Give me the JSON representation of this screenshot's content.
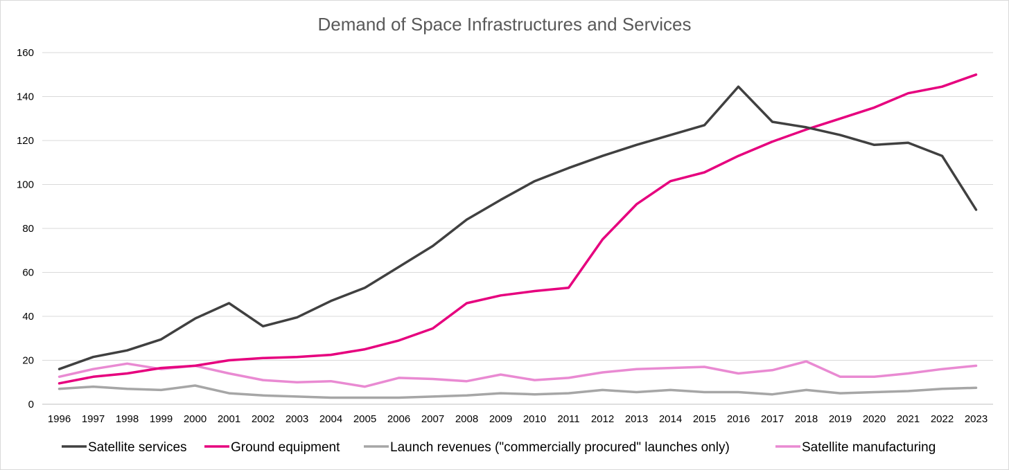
{
  "chart_data": {
    "type": "line",
    "title": "Demand of Space Infrastructures and Services",
    "xlabel": "",
    "ylabel": "",
    "ylim": [
      0,
      160
    ],
    "yticks": [
      0,
      20,
      40,
      60,
      80,
      100,
      120,
      140,
      160
    ],
    "grid": true,
    "legend_position": "bottom",
    "categories": [
      "1996",
      "1997",
      "1998",
      "1999",
      "2000",
      "2001",
      "2002",
      "2003",
      "2004",
      "2005",
      "2006",
      "2007",
      "2008",
      "2009",
      "2010",
      "2011",
      "2012",
      "2013",
      "2014",
      "2015",
      "2016",
      "2017",
      "2018",
      "2019",
      "2020",
      "2021",
      "2022",
      "2023"
    ],
    "series": [
      {
        "name": "Satellite services",
        "color": "#404040",
        "values": [
          16,
          21.5,
          24.5,
          29.5,
          39,
          46,
          35.5,
          39.5,
          47,
          53,
          62.5,
          72,
          84,
          93,
          101.5,
          107.5,
          113,
          118,
          122.5,
          127,
          144.5,
          128.5,
          126,
          122.5,
          118,
          119,
          113,
          88.5
        ]
      },
      {
        "name": "Ground equipment",
        "color": "#e6007e",
        "values": [
          9.5,
          12.5,
          14,
          16.5,
          17.5,
          20,
          21,
          21.5,
          22.5,
          25,
          29,
          34.5,
          46,
          49.5,
          51.5,
          53,
          75,
          91,
          101.5,
          105.5,
          113,
          119.5,
          125,
          130,
          135,
          141.5,
          144.5,
          150
        ]
      },
      {
        "name": "Launch revenues  (\"commercially procured\" launches only)",
        "color": "#a6a6a6",
        "values": [
          7,
          8,
          7,
          6.5,
          8.5,
          5,
          4,
          3.5,
          3,
          3,
          3,
          3.5,
          4,
          5,
          4.5,
          5,
          6.5,
          5.5,
          6.5,
          5.5,
          5.5,
          4.5,
          6.5,
          5,
          5.5,
          6,
          7,
          7.5
        ]
      },
      {
        "name": "Satellite manufacturing",
        "color": "#e98ad2",
        "values": [
          12.5,
          16,
          18.5,
          16,
          17.5,
          14,
          11,
          10,
          10.5,
          8,
          12,
          11.5,
          10.5,
          13.5,
          11,
          12,
          14.5,
          16,
          16.5,
          17,
          14,
          15.5,
          19.5,
          12.5,
          12.5,
          14,
          16,
          17.5
        ]
      }
    ]
  }
}
